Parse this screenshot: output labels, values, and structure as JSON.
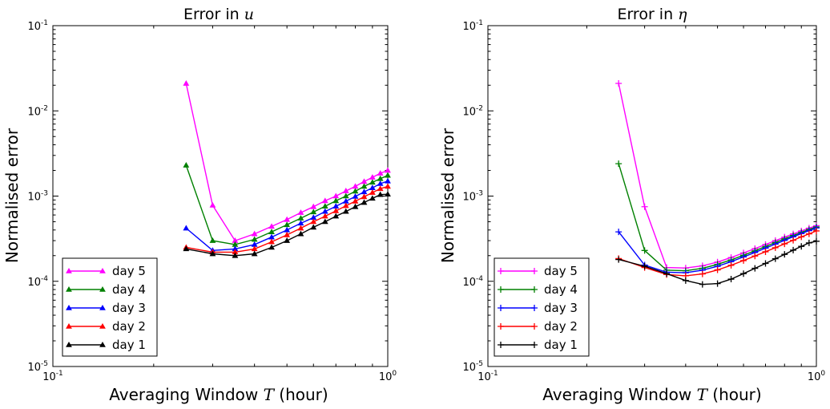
{
  "chart_data": [
    {
      "type": "line",
      "title_prefix": "Error in ",
      "title_symbol": "u",
      "xlabel_prefix": "Averaging Window ",
      "xlabel_symbol": "T",
      "xlabel_suffix": " (hour)",
      "ylabel": "Normalised error",
      "xscale": "log",
      "yscale": "log",
      "xlim": [
        0.1,
        1.0
      ],
      "ylim": [
        1e-05,
        0.1
      ],
      "marker": "triangle",
      "legend_position": "lower-left",
      "x_ticks": [
        {
          "base": "10",
          "exp": "-1",
          "value": 0.1
        },
        {
          "base": "10",
          "exp": "0",
          "value": 1.0
        }
      ],
      "y_ticks": [
        {
          "base": "10",
          "exp": "-5",
          "value": 1e-05
        },
        {
          "base": "10",
          "exp": "-4",
          "value": 0.0001
        },
        {
          "base": "10",
          "exp": "-3",
          "value": 0.001
        },
        {
          "base": "10",
          "exp": "-2",
          "value": 0.01
        },
        {
          "base": "10",
          "exp": "-1",
          "value": 0.1
        }
      ],
      "x": [
        0.25,
        0.3,
        0.35,
        0.4,
        0.45,
        0.5,
        0.55,
        0.6,
        0.65,
        0.7,
        0.75,
        0.8,
        0.85,
        0.9,
        0.95,
        1.0
      ],
      "series": [
        {
          "name": "day 5",
          "color": "#ff00ff",
          "values": [
            0.021,
            0.00078,
            0.0003,
            0.00036,
            0.00044,
            0.00053,
            0.00064,
            0.00075,
            0.00088,
            0.001,
            0.00115,
            0.0013,
            0.00148,
            0.00166,
            0.00185,
            0.002
          ]
        },
        {
          "name": "day 4",
          "color": "#008000",
          "values": [
            0.0023,
            0.0003,
            0.00027,
            0.00031,
            0.00038,
            0.00046,
            0.00055,
            0.00065,
            0.00076,
            0.00088,
            0.001,
            0.00114,
            0.0013,
            0.00145,
            0.0016,
            0.00175
          ]
        },
        {
          "name": "day 3",
          "color": "#0000ff",
          "values": [
            0.00042,
            0.00023,
            0.00024,
            0.00027,
            0.00033,
            0.0004,
            0.00048,
            0.00056,
            0.00066,
            0.00076,
            0.00087,
            0.00099,
            0.00112,
            0.00125,
            0.0014,
            0.0015
          ]
        },
        {
          "name": "day 2",
          "color": "#ff0000",
          "values": [
            0.00025,
            0.00022,
            0.00022,
            0.00024,
            0.00029,
            0.00035,
            0.00042,
            0.0005,
            0.00058,
            0.00067,
            0.00077,
            0.00087,
            0.00098,
            0.0011,
            0.00122,
            0.0013
          ]
        },
        {
          "name": "day 1",
          "color": "#000000",
          "values": [
            0.00024,
            0.00021,
            0.0002,
            0.00021,
            0.00025,
            0.0003,
            0.00036,
            0.00043,
            0.0005,
            0.00058,
            0.00066,
            0.00075,
            0.00084,
            0.00094,
            0.00104,
            0.00105
          ]
        }
      ]
    },
    {
      "type": "line",
      "title_prefix": "Error in ",
      "title_symbol": "η",
      "xlabel_prefix": "Averaging Window ",
      "xlabel_symbol": "T",
      "xlabel_suffix": " (hour)",
      "ylabel": "Normalised error",
      "xscale": "log",
      "yscale": "log",
      "xlim": [
        0.1,
        1.0
      ],
      "ylim": [
        1e-05,
        0.1
      ],
      "marker": "plus",
      "legend_position": "lower-left",
      "x_ticks": [
        {
          "base": "10",
          "exp": "-1",
          "value": 0.1
        },
        {
          "base": "10",
          "exp": "0",
          "value": 1.0
        }
      ],
      "y_ticks": [
        {
          "base": "10",
          "exp": "-5",
          "value": 1e-05
        },
        {
          "base": "10",
          "exp": "-4",
          "value": 0.0001
        },
        {
          "base": "10",
          "exp": "-3",
          "value": 0.001
        },
        {
          "base": "10",
          "exp": "-2",
          "value": 0.01
        },
        {
          "base": "10",
          "exp": "-1",
          "value": 0.1
        }
      ],
      "x": [
        0.25,
        0.3,
        0.35,
        0.4,
        0.45,
        0.5,
        0.55,
        0.6,
        0.65,
        0.7,
        0.75,
        0.8,
        0.85,
        0.9,
        0.95,
        1.0
      ],
      "series": [
        {
          "name": "day 5",
          "color": "#ff00ff",
          "values": [
            0.021,
            0.00075,
            0.000145,
            0.000143,
            0.000152,
            0.000168,
            0.00019,
            0.000215,
            0.000242,
            0.00027,
            0.0003,
            0.00033,
            0.00036,
            0.00039,
            0.00042,
            0.00045
          ]
        },
        {
          "name": "day 4",
          "color": "#008000",
          "values": [
            0.0024,
            0.00023,
            0.000135,
            0.000133,
            0.000142,
            0.000158,
            0.000178,
            0.000202,
            0.000228,
            0.000256,
            0.000285,
            0.000315,
            0.000345,
            0.000375,
            0.000405,
            0.000435
          ]
        },
        {
          "name": "day 3",
          "color": "#0000ff",
          "values": [
            0.00038,
            0.000155,
            0.000128,
            0.000126,
            0.000135,
            0.00015,
            0.00017,
            0.000193,
            0.000218,
            0.000245,
            0.000273,
            0.000302,
            0.000333,
            0.000363,
            0.000393,
            0.000423
          ]
        },
        {
          "name": "day 2",
          "color": "#ff0000",
          "values": [
            0.000185,
            0.000145,
            0.00012,
            0.000116,
            0.000122,
            0.000136,
            0.000154,
            0.000175,
            0.000198,
            0.000222,
            0.000248,
            0.000275,
            0.000303,
            0.000332,
            0.00036,
            0.00039
          ]
        },
        {
          "name": "day 1",
          "color": "#000000",
          "values": [
            0.00018,
            0.00015,
            0.000123,
            0.000102,
            9.2e-05,
            9.4e-05,
            0.000106,
            0.000123,
            0.000142,
            0.000162,
            0.000184,
            0.000207,
            0.000232,
            0.000257,
            0.000282,
            0.000295
          ]
        }
      ]
    }
  ]
}
